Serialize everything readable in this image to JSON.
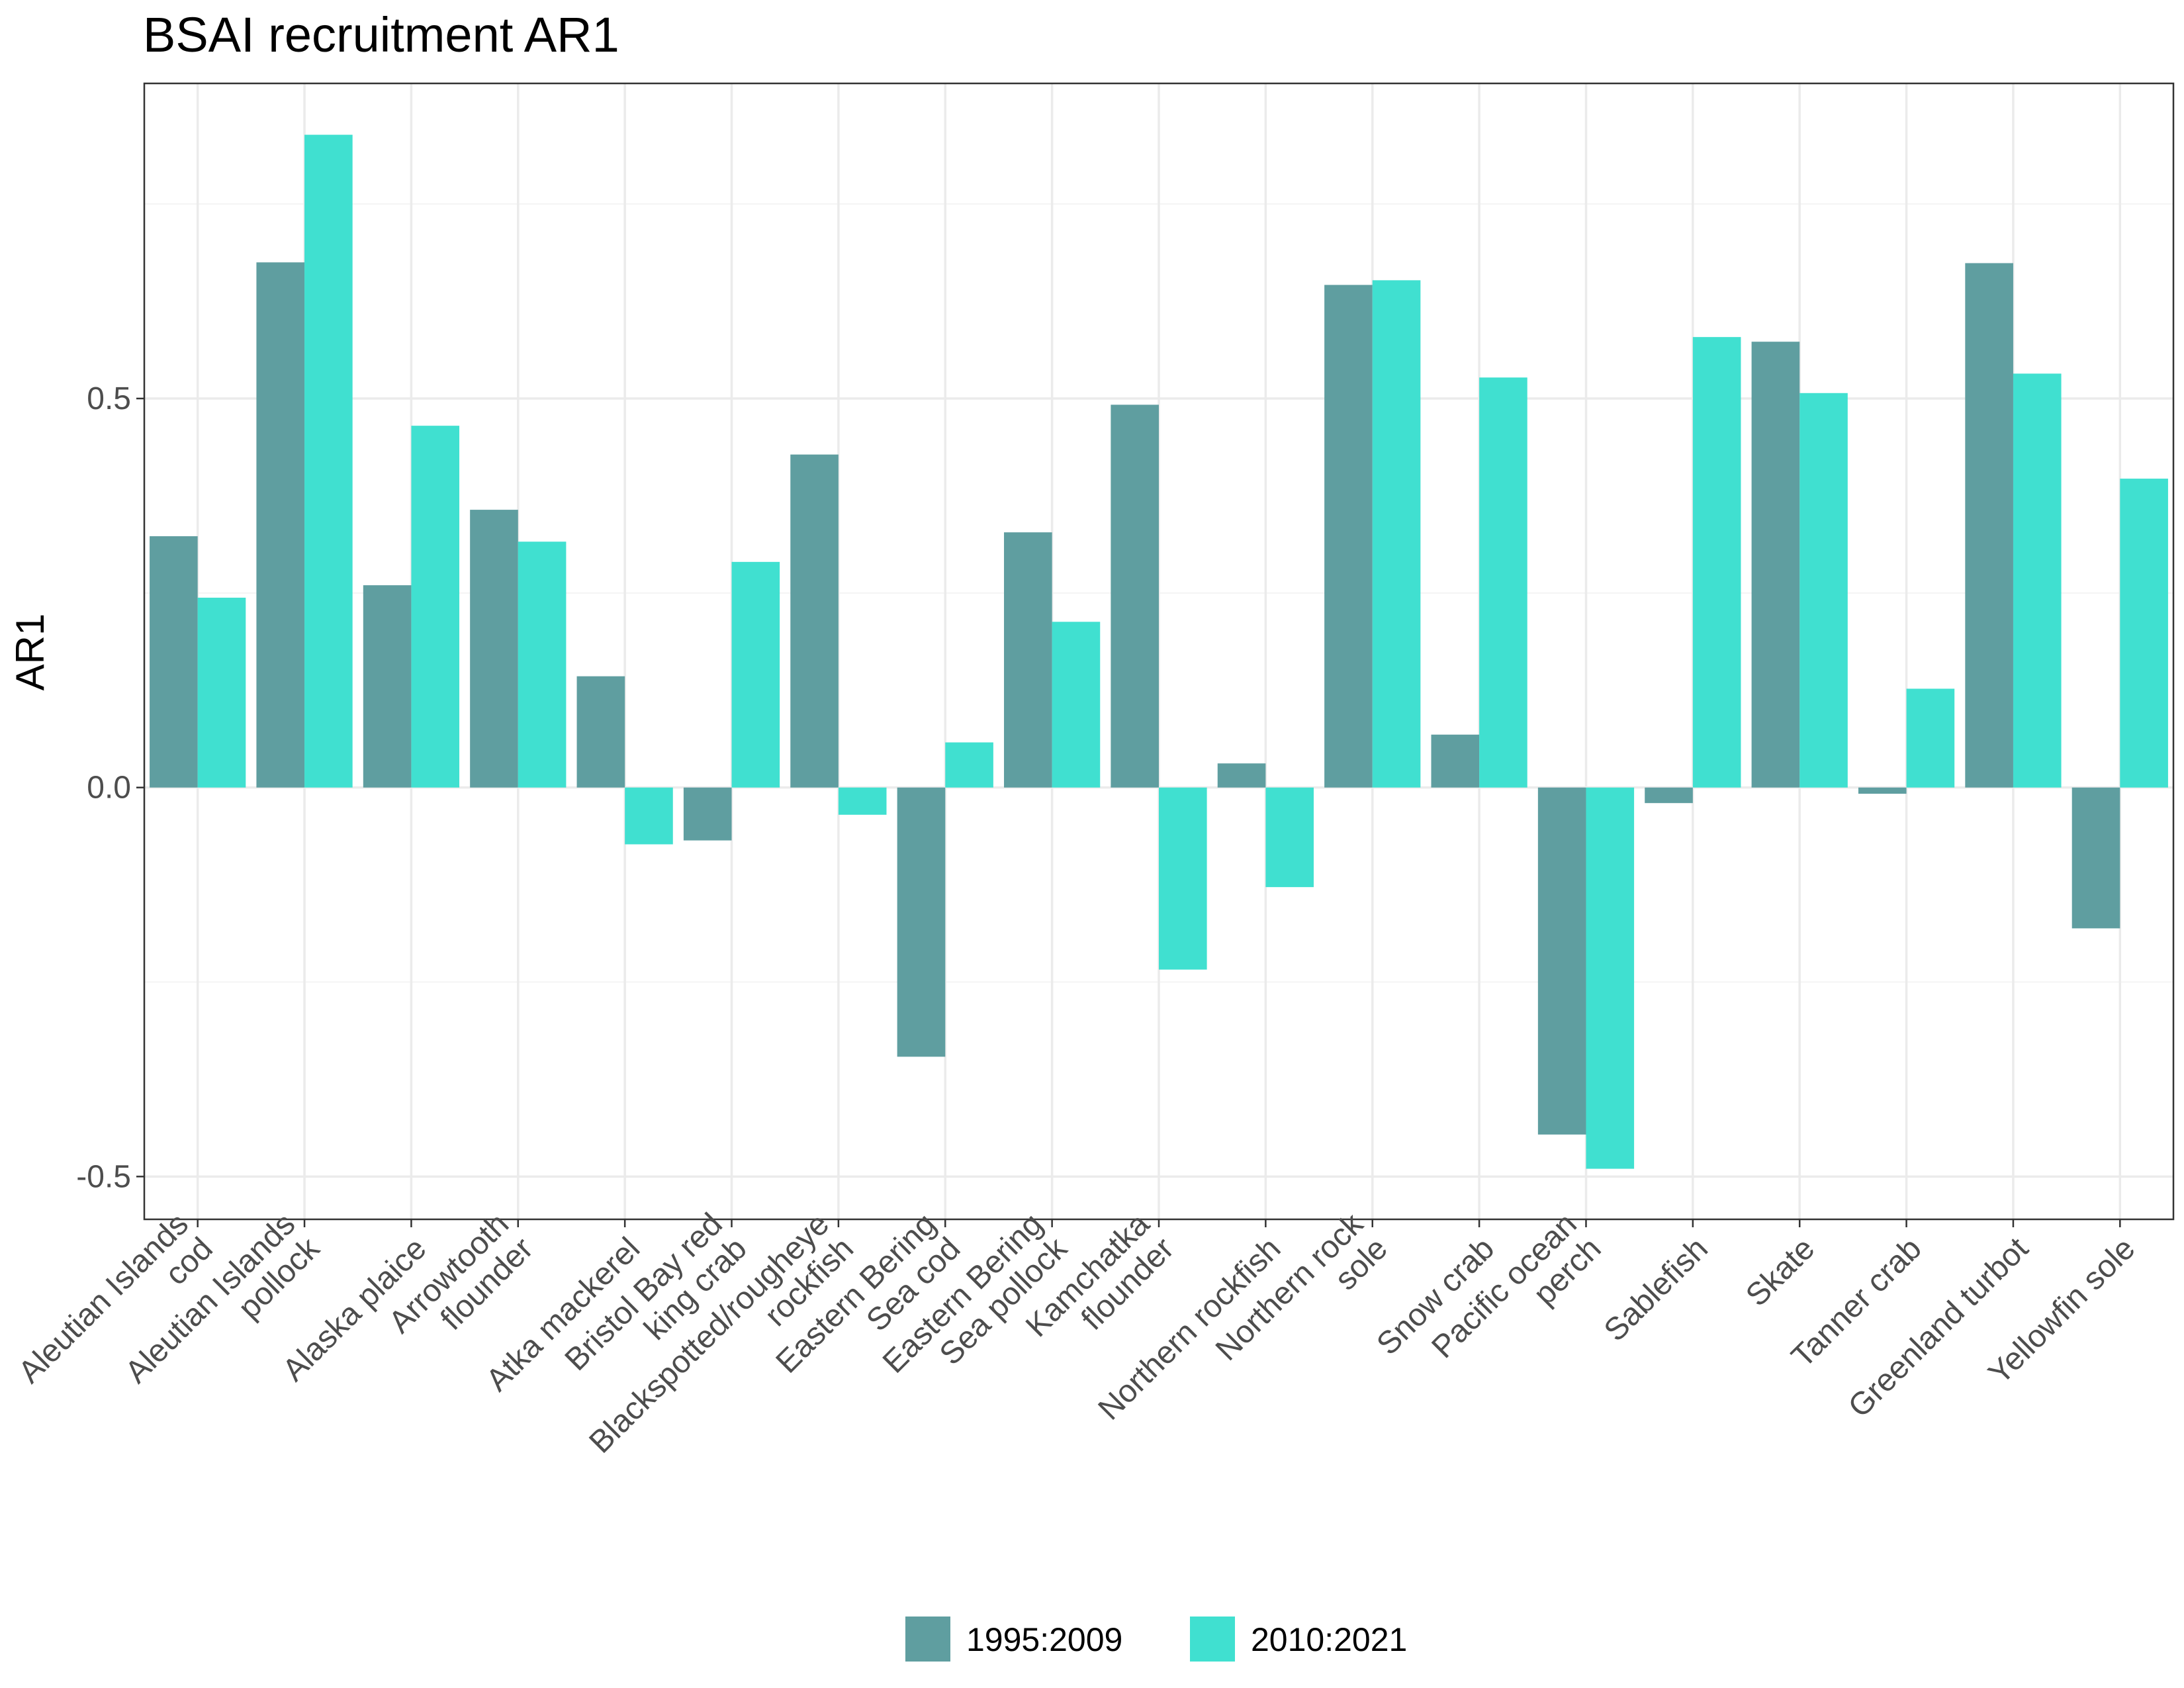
{
  "chart_data": {
    "type": "bar",
    "title": "BSAI recruitment AR1",
    "xlabel": "",
    "ylabel": "AR1",
    "ylim": [
      -0.555,
      0.905
    ],
    "yticks": [
      -0.5,
      0.0,
      0.5
    ],
    "ytick_labels": [
      "-0.5",
      "0.0",
      "0.5"
    ],
    "grid": true,
    "legend_position": "bottom",
    "categories": [
      [
        "Aleutian Islands",
        "cod"
      ],
      [
        "Aleutian Islands",
        "pollock"
      ],
      [
        "Alaska plaice"
      ],
      [
        "Arrowtooth",
        "flounder"
      ],
      [
        "Atka mackerel"
      ],
      [
        "Bristol Bay red",
        "king crab"
      ],
      [
        "Blackspotted/rougheye",
        "rockfish"
      ],
      [
        "Eastern Bering",
        "Sea cod"
      ],
      [
        "Eastern Bering",
        "Sea pollock"
      ],
      [
        "Kamchatka",
        "flounder"
      ],
      [
        "Northern rockfish"
      ],
      [
        "Northern rock",
        "sole"
      ],
      [
        "Snow crab"
      ],
      [
        "Pacific ocean",
        "perch"
      ],
      [
        "Sablefish"
      ],
      [
        "Skate"
      ],
      [
        "Tanner crab"
      ],
      [
        "Greenland turbot"
      ],
      [
        "Yellowfin sole"
      ]
    ],
    "series": [
      {
        "name": "1995:2009",
        "color": "#5F9EA0",
        "values": [
          0.323,
          0.675,
          0.26,
          0.357,
          0.143,
          -0.068,
          0.428,
          -0.346,
          0.328,
          0.492,
          0.031,
          0.646,
          0.068,
          -0.446,
          -0.02,
          0.573,
          -0.008,
          0.674,
          -0.181
        ]
      },
      {
        "name": "2010:2021",
        "color": "#40E0D0",
        "values": [
          0.244,
          0.839,
          0.465,
          0.316,
          -0.073,
          0.29,
          -0.035,
          0.058,
          0.213,
          -0.234,
          -0.128,
          0.652,
          0.527,
          -0.49,
          0.579,
          0.507,
          0.127,
          0.532,
          0.397
        ]
      }
    ]
  },
  "colors": {
    "panel_border": "#333333",
    "grid_major": "#ebebeb",
    "grid_minor": "#f4f4f4",
    "tick_text": "#4d4d4d"
  }
}
